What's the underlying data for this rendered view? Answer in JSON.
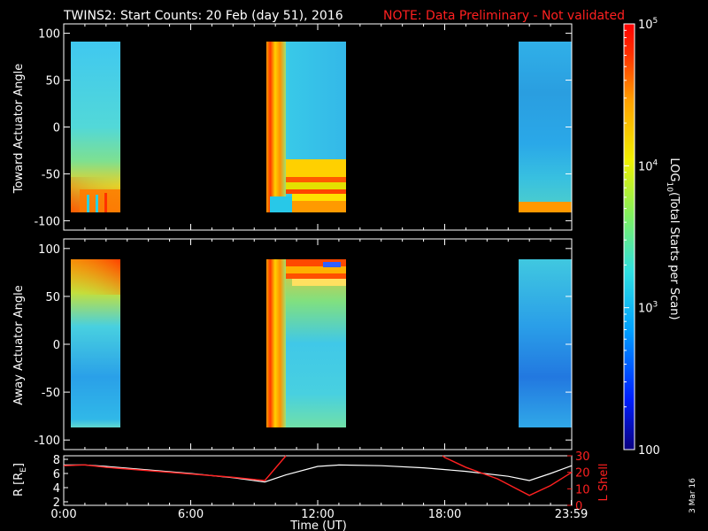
{
  "title": "TWINS2: Start Counts: 20 Feb (day  51), 2016",
  "note": "NOTE: Data Preliminary - Not validated",
  "stamp": "3 Mar 16",
  "colors": {
    "note": "#ff2020",
    "r_line": "#ffffff",
    "lshell_line": "#ff2020",
    "background": "#000000"
  },
  "colorbar": {
    "label": "LOG10(Total Starts per Scan)",
    "label_main": "LOG",
    "label_sub": "10",
    "label_rest": "(Total Starts per Scan)",
    "scale": "log",
    "range": [
      100,
      100000
    ],
    "ticks": [
      {
        "value": 100,
        "base": "100",
        "exp": ""
      },
      {
        "value": 1000,
        "base": "10",
        "exp": "3"
      },
      {
        "value": 10000,
        "base": "10",
        "exp": "4"
      },
      {
        "value": 100000,
        "base": "10",
        "exp": "5"
      }
    ]
  },
  "chart_data": [
    {
      "type": "heatmap",
      "panel": "toward",
      "ylabel": "Toward Actuator Angle",
      "ylim": [
        -110,
        110
      ],
      "yticks": [
        "100",
        "50",
        "0",
        "-50",
        "-100"
      ],
      "ytick_values": [
        100,
        50,
        0,
        -50,
        -100
      ],
      "xlim": [
        0,
        24
      ],
      "data_blocks_hours": [
        [
          0,
          2.2
        ],
        [
          9.3,
          13.3
        ],
        [
          21.7,
          24
        ]
      ],
      "description_values": "counts mostly ~1000-3000; high (~20000-100000) near -90 deg and 9.3-10.5 UT"
    },
    {
      "type": "heatmap",
      "panel": "away",
      "ylabel": "Away Actuator Angle",
      "ylim": [
        -110,
        110
      ],
      "yticks": [
        "100",
        "50",
        "0",
        "-50",
        "-100"
      ],
      "ytick_values": [
        100,
        50,
        0,
        -50,
        -100
      ],
      "xlim": [
        0,
        24
      ],
      "data_blocks_hours": [
        [
          0,
          2.2
        ],
        [
          9.3,
          13.3
        ],
        [
          21.7,
          24
        ]
      ]
    },
    {
      "type": "line",
      "panel": "ephemeris",
      "xlabel": "Time (UT)",
      "xticks": [
        "0:00",
        "6:00",
        "12:00",
        "18:00",
        "23:59"
      ],
      "xtick_values": [
        0,
        6,
        12,
        18,
        23.98
      ],
      "xlim": [
        0,
        24
      ],
      "ylabel_left": "R [RE]",
      "ylabel_left_main": "R [R",
      "ylabel_left_sub": "E",
      "ylabel_left_end": "]",
      "yticks_left": [
        "2",
        "4",
        "6",
        "8"
      ],
      "ylim_left": [
        1.5,
        8.5
      ],
      "ylabel_right": "L Shell",
      "yticks_right": [
        "0",
        "10",
        "20",
        "30"
      ],
      "ylim_right": [
        0,
        30
      ],
      "series": [
        {
          "name": "R",
          "x": [
            0,
            1,
            2,
            4,
            6,
            8,
            9.5,
            10.5,
            12,
            13,
            15,
            17,
            19,
            21,
            22,
            23,
            24
          ],
          "y": [
            7.2,
            7.2,
            7.0,
            6.5,
            6.0,
            5.4,
            4.8,
            5.8,
            7.0,
            7.2,
            7.1,
            6.8,
            6.3,
            5.6,
            5.0,
            6.0,
            7.1
          ]
        },
        {
          "name": "L Shell",
          "x": [
            0,
            1,
            2,
            4,
            6,
            8,
            9.5,
            10.5,
            10.6,
            17.9,
            18,
            19,
            20.5,
            22,
            23,
            24
          ],
          "y": [
            24,
            24.5,
            23,
            21,
            19,
            17,
            15,
            31,
            null,
            31,
            29,
            23,
            16,
            6,
            12,
            20
          ]
        }
      ]
    }
  ]
}
